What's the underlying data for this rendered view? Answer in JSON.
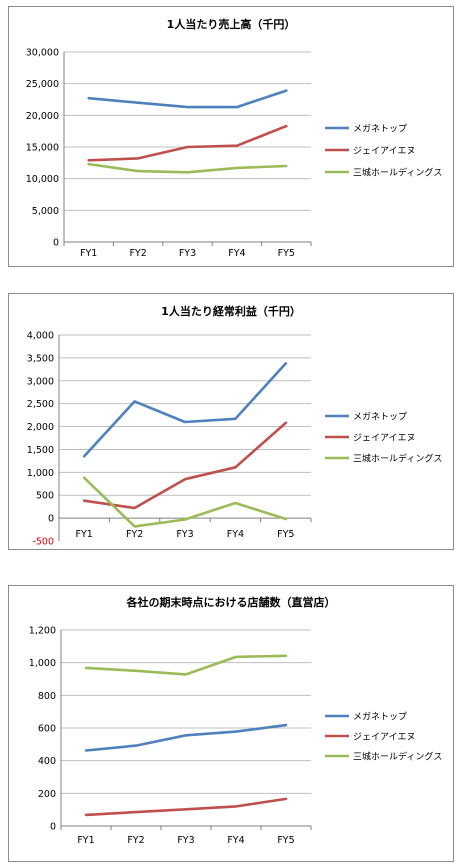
{
  "colors": {
    "megane": "#4f81bd",
    "jins": "#c0504d",
    "sanjo": "#9bbb59",
    "grid": "#bfbfbf",
    "axis": "#808080"
  },
  "chart_data": [
    {
      "type": "line",
      "title": "1人当たり売上高（千円）",
      "categories": [
        "FY1",
        "FY2",
        "FY3",
        "FY4",
        "FY5"
      ],
      "ylim": [
        0,
        30000
      ],
      "yticks": [
        0,
        5000,
        10000,
        15000,
        20000,
        25000,
        30000
      ],
      "ytick_labels": [
        "0",
        "5,000",
        "10,000",
        "15,000",
        "20,000",
        "25,000",
        "30,000"
      ],
      "legend": "right",
      "series": [
        {
          "name": "メガネトップ",
          "color": "#4f81bd",
          "values": [
            22700,
            22000,
            21300,
            21300,
            23900
          ]
        },
        {
          "name": "ジェイアイエヌ",
          "color": "#c0504d",
          "values": [
            12900,
            13200,
            15000,
            15200,
            18300
          ]
        },
        {
          "name": "三城ホールディングス",
          "color": "#9bbb59",
          "values": [
            12300,
            11200,
            11000,
            11700,
            12000
          ]
        }
      ]
    },
    {
      "type": "line",
      "title": "1人当たり経常利益（千円）",
      "categories": [
        "FY1",
        "FY2",
        "FY3",
        "FY4",
        "FY5"
      ],
      "ylim": [
        -500,
        4000
      ],
      "yticks": [
        -500,
        0,
        500,
        1000,
        1500,
        2000,
        2500,
        3000,
        3500,
        4000
      ],
      "ytick_labels": [
        "-500",
        "0",
        "500",
        "1,000",
        "1,500",
        "2,000",
        "2,500",
        "3,000",
        "3,500",
        "4,000"
      ],
      "legend": "right",
      "series": [
        {
          "name": "メガネトップ",
          "color": "#4f81bd",
          "values": [
            1350,
            2550,
            2100,
            2170,
            3380
          ]
        },
        {
          "name": "ジェイアイエヌ",
          "color": "#c0504d",
          "values": [
            380,
            220,
            850,
            1110,
            2080
          ]
        },
        {
          "name": "三城ホールディングス",
          "color": "#9bbb59",
          "values": [
            880,
            -180,
            -30,
            330,
            -20
          ]
        }
      ]
    },
    {
      "type": "line",
      "title": "各社の期末時点における店舗数（直営店）",
      "categories": [
        "FY1",
        "FY2",
        "FY3",
        "FY4",
        "FY5"
      ],
      "ylim": [
        0,
        1200
      ],
      "yticks": [
        0,
        200,
        400,
        600,
        800,
        1000,
        1200
      ],
      "ytick_labels": [
        "0",
        "200",
        "400",
        "600",
        "800",
        "1,000",
        "1,200"
      ],
      "legend": "right",
      "series": [
        {
          "name": "メガネトップ",
          "color": "#4f81bd",
          "values": [
            462,
            492,
            555,
            578,
            618
          ]
        },
        {
          "name": "ジェイアイエヌ",
          "color": "#c0504d",
          "values": [
            68,
            85,
            102,
            120,
            166
          ]
        },
        {
          "name": "三城ホールディングス",
          "color": "#9bbb59",
          "values": [
            968,
            950,
            928,
            1035,
            1042
          ]
        }
      ]
    }
  ]
}
